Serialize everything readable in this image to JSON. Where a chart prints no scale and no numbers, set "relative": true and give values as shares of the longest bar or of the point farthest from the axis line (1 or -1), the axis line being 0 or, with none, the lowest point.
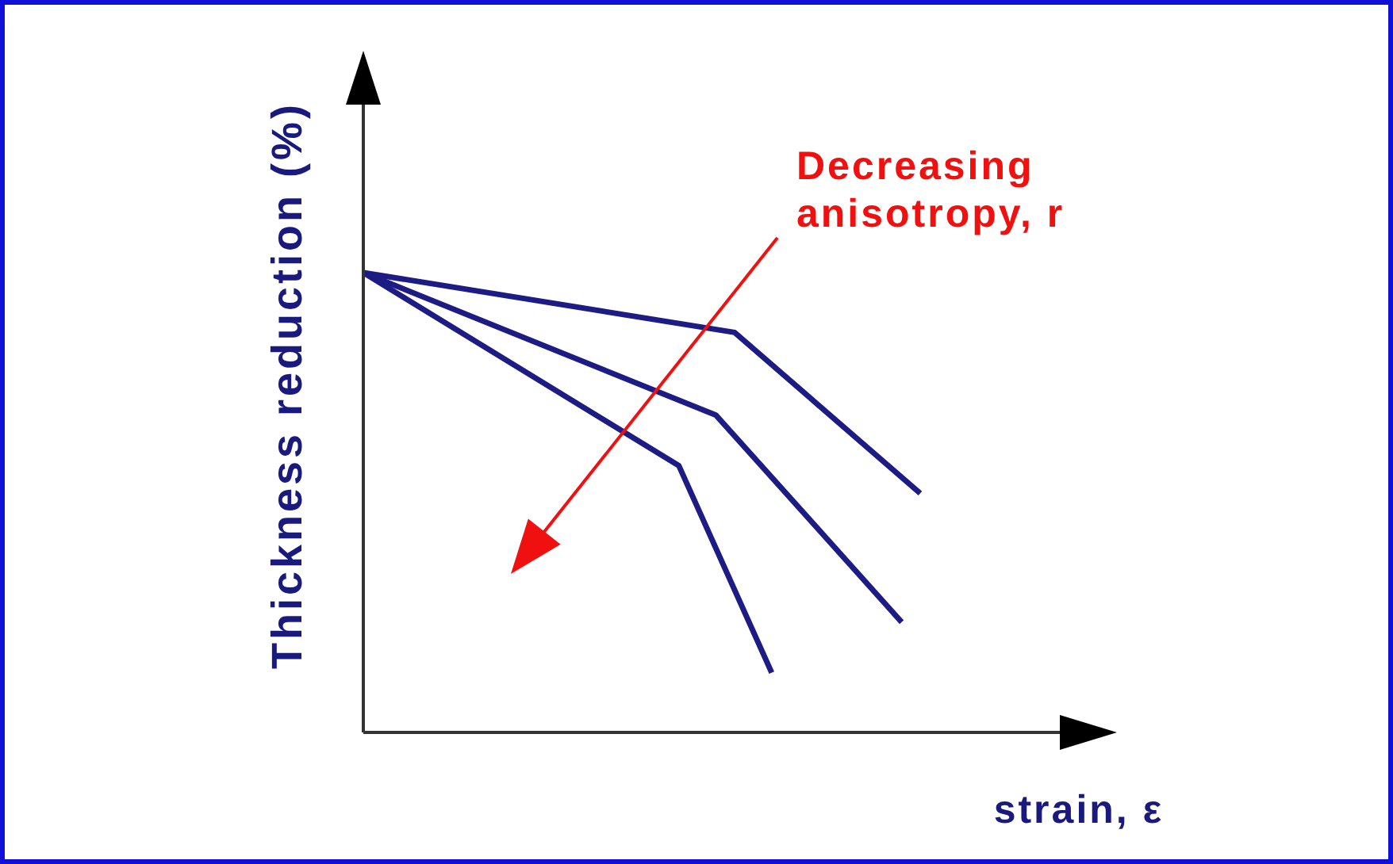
{
  "chart_data": {
    "type": "line",
    "relative": true,
    "xlabel": "strain, ε",
    "ylabel": "Thickness reduction (%)",
    "annotations": [
      "Decreasing anisotropy, r"
    ],
    "marker": "none",
    "line_style": "solid",
    "categories": [
      null,
      null,
      null,
      null,
      null,
      null,
      null,
      null,
      null,
      null,
      null,
      null,
      null,
      null,
      null,
      null,
      null,
      null,
      null,
      null,
      null,
      null,
      null,
      null,
      null,
      null,
      null,
      null,
      null,
      null,
      null
    ],
    "series": [
      {
        "color": "#1c1c84",
        "values": [
          1,
          null,
          null,
          null,
          null,
          null,
          null,
          null,
          null,
          null,
          null,
          null,
          null,
          null,
          null,
          null,
          null,
          null,
          null,
          null,
          0.87,
          null,
          null,
          null,
          null,
          null,
          null,
          null,
          null,
          null,
          0.52
        ]
      },
      {
        "color": "#1c1c84",
        "values": [
          1,
          null,
          null,
          null,
          null,
          null,
          null,
          null,
          null,
          null,
          null,
          null,
          null,
          null,
          null,
          null,
          null,
          null,
          null,
          0.69,
          null,
          null,
          null,
          null,
          null,
          null,
          null,
          null,
          null,
          0.24,
          null
        ]
      },
      {
        "color": "#1c1c84",
        "values": [
          1,
          null,
          null,
          null,
          null,
          null,
          null,
          null,
          null,
          null,
          null,
          null,
          null,
          null,
          null,
          null,
          null,
          0.58,
          null,
          null,
          null,
          null,
          0.13,
          null,
          null,
          null,
          null,
          null,
          null,
          null,
          null
        ]
      }
    ]
  }
}
